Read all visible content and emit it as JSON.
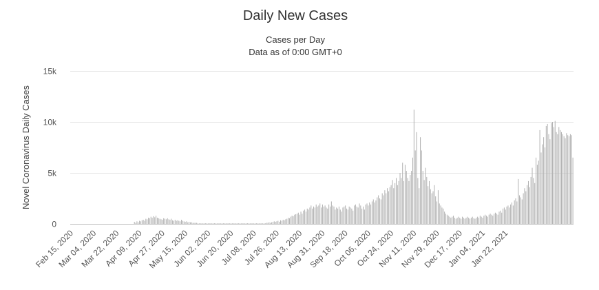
{
  "chart_data": {
    "type": "bar",
    "title": "Daily New Cases",
    "subtitle": "Cases per Day",
    "subtitle2": "Data as of 0:00 GMT+0",
    "ylabel": "Novel Coronavirus Daily Cases",
    "ylim": [
      0,
      15000
    ],
    "yticks": [
      {
        "value": 0,
        "label": "0"
      },
      {
        "value": 5000,
        "label": "5k"
      },
      {
        "value": 10000,
        "label": "10k"
      },
      {
        "value": 15000,
        "label": "15k"
      }
    ],
    "x_start": "Feb 15, 2020",
    "xtick_labels": [
      "Feb 15, 2020",
      "Mar 04, 2020",
      "Mar 22, 2020",
      "Apr 09, 2020",
      "Apr 27, 2020",
      "May 15, 2020",
      "Jun 02, 2020",
      "Jun 20, 2020",
      "Jul 08, 2020",
      "Jul 26, 2020",
      "Aug 13, 2020",
      "Aug 31, 2020",
      "Sep 18, 2020",
      "Oct 06, 2020",
      "Oct 24, 2020",
      "Nov 11, 2020",
      "Nov 29, 2020",
      "Dec 17, 2020",
      "Jan 04, 2021",
      "Jan 22, 2021"
    ],
    "bar_color": "#b0b0b0",
    "grid": true,
    "legend": "none",
    "values": [
      0,
      0,
      0,
      0,
      0,
      0,
      0,
      0,
      0,
      0,
      0,
      0,
      0,
      0,
      0,
      0,
      0,
      0,
      0,
      0,
      0,
      0,
      0,
      0,
      0,
      0,
      0,
      0,
      0,
      0,
      0,
      0,
      0,
      0,
      0,
      0,
      0,
      0,
      0,
      0,
      0,
      0,
      0,
      0,
      0,
      0,
      0,
      0,
      0,
      0,
      200,
      100,
      250,
      150,
      300,
      250,
      350,
      400,
      300,
      500,
      450,
      600,
      550,
      700,
      600,
      750,
      650,
      800,
      600,
      550,
      500,
      450,
      400,
      550,
      500,
      450,
      550,
      450,
      400,
      500,
      350,
      300,
      400,
      300,
      350,
      300,
      250,
      400,
      300,
      250,
      200,
      250,
      150,
      200,
      150,
      150,
      100,
      100,
      100,
      100,
      50,
      50,
      50,
      50,
      50,
      50,
      50,
      50,
      50,
      50,
      50,
      50,
      50,
      50,
      50,
      50,
      50,
      50,
      50,
      50,
      50,
      50,
      50,
      50,
      50,
      50,
      50,
      50,
      50,
      50,
      50,
      50,
      50,
      50,
      50,
      50,
      50,
      50,
      50,
      50,
      50,
      50,
      50,
      50,
      50,
      50,
      50,
      50,
      50,
      50,
      50,
      50,
      50,
      50,
      100,
      100,
      150,
      100,
      150,
      200,
      250,
      200,
      250,
      300,
      200,
      350,
      300,
      400,
      350,
      450,
      500,
      600,
      550,
      700,
      800,
      750,
      900,
      950,
      1000,
      1100,
      900,
      1200,
      1000,
      1300,
      1400,
      1200,
      1500,
      1400,
      1600,
      1800,
      1500,
      1700,
      1600,
      1900,
      1700,
      1800,
      2000,
      1600,
      1900,
      1700,
      1800,
      1600,
      1500,
      1900,
      1700,
      2200,
      1800,
      1700,
      1400,
      1600,
      1500,
      1700,
      1400,
      1200,
      1600,
      1700,
      1800,
      1500,
      1400,
      1700,
      1600,
      1500,
      1300,
      1800,
      1900,
      1700,
      1600,
      2000,
      1800,
      1500,
      1700,
      1400,
      1900,
      2000,
      1800,
      2100,
      1900,
      2200,
      2400,
      2100,
      2300,
      2600,
      2800,
      2500,
      2400,
      3000,
      2800,
      3300,
      3000,
      3500,
      3200,
      3600,
      3800,
      4300,
      3500,
      4000,
      4500,
      3800,
      4200,
      5000,
      4500,
      6000,
      4200,
      5800,
      5200,
      4500,
      4200,
      4800,
      5200,
      6500,
      11200,
      7200,
      9000,
      4500,
      3500,
      8500,
      7200,
      5200,
      4300,
      5500,
      4600,
      3700,
      4200,
      3400,
      3000,
      3200,
      3800,
      2700,
      2200,
      3300,
      2000,
      1800,
      1600,
      1500,
      1200,
      1000,
      900,
      800,
      700,
      600,
      700,
      800,
      600,
      500,
      600,
      700,
      600,
      500,
      700,
      600,
      500,
      600,
      700,
      600,
      500,
      600,
      700,
      550,
      500,
      600,
      700,
      600,
      800,
      700,
      600,
      800,
      900,
      800,
      700,
      900,
      1000,
      900,
      800,
      1000,
      1100,
      1000,
      900,
      1200,
      1300,
      1100,
      1500,
      1600,
      1400,
      1700,
      1800,
      1600,
      1900,
      2100,
      1800,
      2300,
      2500,
      2200,
      4400,
      2800,
      2600,
      2400,
      3000,
      3500,
      3200,
      3800,
      4200,
      3600,
      4600,
      5500,
      4500,
      4000,
      6500,
      5800,
      6200,
      9200,
      7000,
      7800,
      8500,
      7500,
      9600,
      9800,
      8800,
      8300,
      9900,
      10000,
      9500,
      10100,
      9000,
      8800,
      9500,
      9200,
      9000,
      8800,
      8600,
      8400,
      8900,
      8700,
      8600,
      8800,
      8700,
      6500
    ]
  }
}
